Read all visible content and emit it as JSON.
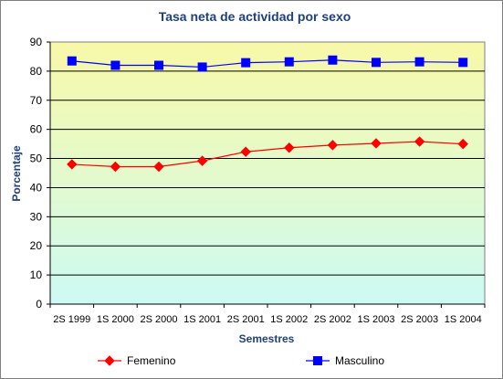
{
  "chart_data": {
    "type": "line",
    "title": "Tasa neta de actividad por sexo",
    "xlabel": "Semestres",
    "ylabel": "Porcentaje",
    "ylim": [
      0,
      90
    ],
    "ytick_step": 10,
    "grid": true,
    "legend_position": "bottom",
    "categories": [
      "2S 1999",
      "1S 2000",
      "2S 2000",
      "1S 2001",
      "2S 2001",
      "1S 2002",
      "2S 2002",
      "1S 2003",
      "2S 2003",
      "1S 2004"
    ],
    "series": [
      {
        "name": "Femenino",
        "color": "#ff0000",
        "marker": "diamond",
        "values": [
          48.0,
          47.2,
          47.2,
          49.2,
          52.3,
          53.7,
          54.6,
          55.2,
          55.8,
          55.0
        ]
      },
      {
        "name": "Masculino",
        "color": "#0000ff",
        "marker": "square",
        "values": [
          83.5,
          82.0,
          82.0,
          81.4,
          82.9,
          83.2,
          83.8,
          83.0,
          83.2,
          83.0
        ]
      }
    ]
  }
}
